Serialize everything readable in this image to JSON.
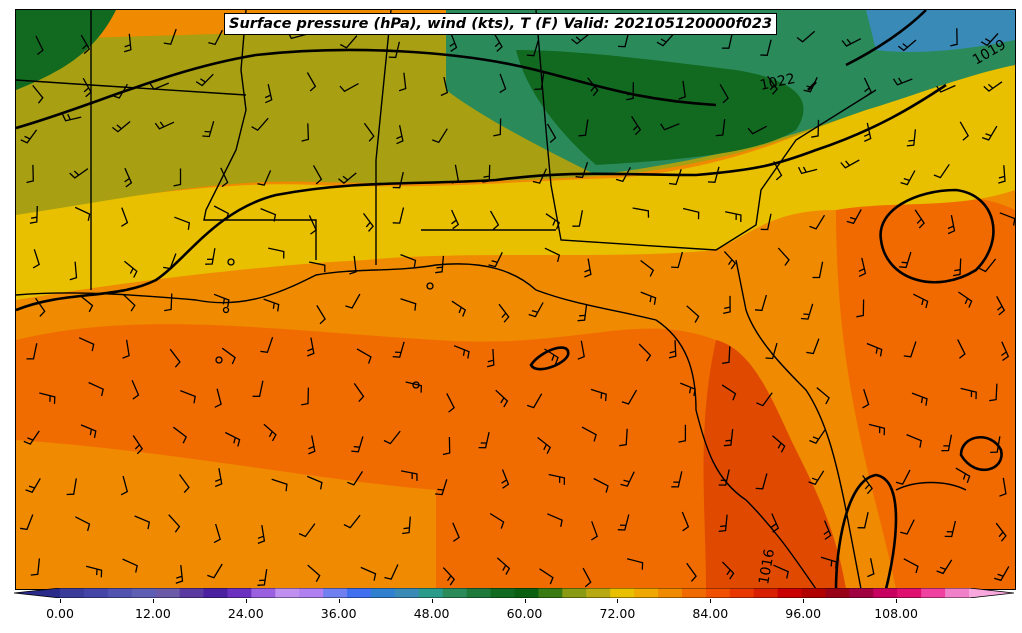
{
  "title": "Surface pressure (hPa), wind (kts), T (F) Valid: 202105120000f023",
  "isobar_labels": [
    "1022",
    "1019",
    "1016"
  ],
  "colorbar": {
    "ticks": [
      "0.00",
      "12.00",
      "24.00",
      "36.00",
      "48.00",
      "60.00",
      "72.00",
      "84.00",
      "96.00",
      "108.00"
    ],
    "min": -6,
    "max": 120,
    "extend": "both",
    "colors": [
      "#3b3b9a",
      "#4545a8",
      "#5252b0",
      "#5e5eb5",
      "#6a5aa8",
      "#5a3aa0",
      "#4a20a0",
      "#6a30c0",
      "#9a60e0",
      "#c090f0",
      "#b080f0",
      "#7080f0",
      "#4070f0",
      "#3080d0",
      "#3a8ab8",
      "#2a9a8a",
      "#2a8a5a",
      "#1e7a3a",
      "#126a20",
      "#0a6010",
      "#3a7a12",
      "#8a9a12",
      "#b8a812",
      "#e8c000",
      "#f0a800",
      "#f08a00",
      "#f06a00",
      "#f05000",
      "#e83800",
      "#d82000",
      "#c80000",
      "#b00000",
      "#980018",
      "#a00040",
      "#c80060",
      "#e01070",
      "#f040a0",
      "#f080c8"
    ]
  },
  "colors": {
    "gulf_warm": "#f08a00",
    "land_orange": "#f06a00",
    "cool_green": "#1e7a3a",
    "teal": "#3a8ab8",
    "yellow": "#e8c000",
    "olive": "#8a9a12"
  }
}
